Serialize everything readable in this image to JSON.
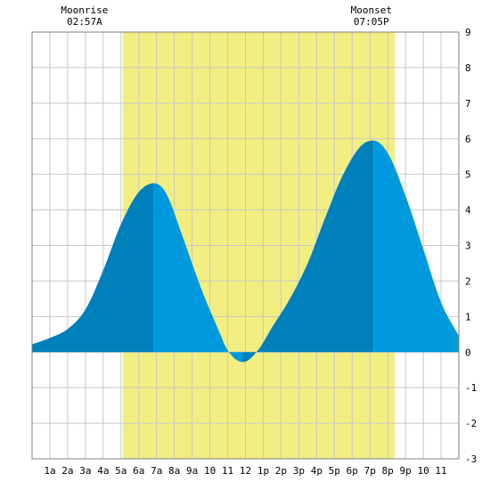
{
  "chart_data": {
    "type": "area",
    "title": "",
    "xlabel": "",
    "ylabel": "",
    "x_range": [
      0,
      24
    ],
    "ylim": [
      -3,
      9
    ],
    "grid": true,
    "x_tick_labels": [
      "1a",
      "2a",
      "3a",
      "4a",
      "5a",
      "6a",
      "7a",
      "8a",
      "9a",
      "10",
      "11",
      "12",
      "1p",
      "2p",
      "3p",
      "4p",
      "5p",
      "6p",
      "7p",
      "8p",
      "9p",
      "10",
      "11"
    ],
    "y_ticks": [
      -3,
      -2,
      -1,
      0,
      1,
      2,
      3,
      4,
      5,
      6,
      7,
      8,
      9
    ],
    "daylight": {
      "start_hour": 5.1,
      "end_hour": 20.4,
      "color": "#f2ee82"
    },
    "moonrise": {
      "label": "Moonrise",
      "time": "02:57A",
      "hour": 2.95
    },
    "moonset": {
      "label": "Moonset",
      "time": "07:05P",
      "hour": 19.08
    },
    "tide_extremes": [
      {
        "hour": 6.85,
        "height": 4.75,
        "kind": "high"
      },
      {
        "hour": 11.85,
        "height": -0.28,
        "kind": "low"
      },
      {
        "hour": 19.2,
        "height": 5.95,
        "kind": "high"
      }
    ],
    "tide_curve": [
      [
        0.0,
        0.22
      ],
      [
        1.0,
        0.4
      ],
      [
        2.0,
        0.65
      ],
      [
        3.0,
        1.2
      ],
      [
        4.0,
        2.3
      ],
      [
        5.0,
        3.6
      ],
      [
        6.0,
        4.5
      ],
      [
        6.85,
        4.75
      ],
      [
        7.5,
        4.5
      ],
      [
        8.5,
        3.2
      ],
      [
        9.5,
        1.8
      ],
      [
        10.5,
        0.6
      ],
      [
        11.0,
        0.05
      ],
      [
        11.85,
        -0.28
      ],
      [
        12.7,
        0.05
      ],
      [
        13.5,
        0.7
      ],
      [
        14.5,
        1.5
      ],
      [
        15.5,
        2.5
      ],
      [
        16.5,
        3.8
      ],
      [
        17.5,
        5.0
      ],
      [
        18.5,
        5.8
      ],
      [
        19.2,
        5.95
      ],
      [
        20.0,
        5.6
      ],
      [
        21.0,
        4.4
      ],
      [
        22.0,
        2.9
      ],
      [
        23.0,
        1.4
      ],
      [
        24.0,
        0.45
      ]
    ],
    "colors": {
      "tide_light": "#0099dd",
      "tide_dark": "#0080bb",
      "grid": "#c8c8c8",
      "background": "#ffffff"
    }
  }
}
